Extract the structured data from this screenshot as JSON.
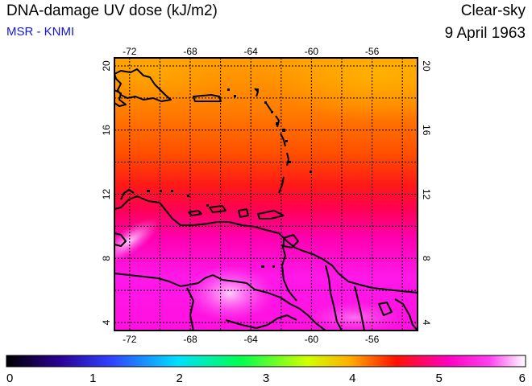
{
  "header": {
    "title": "DNA-damage UV dose (kJ/m2)",
    "source": "MSR - KNMI",
    "condition": "Clear-sky",
    "date": "9 April 1963"
  },
  "map": {
    "lon_range": [
      -73,
      -53
    ],
    "lat_range": [
      3.5,
      20.5
    ],
    "lon_ticks": [
      -72,
      -68,
      -64,
      -60,
      -56
    ],
    "lat_ticks": [
      4,
      8,
      12,
      16,
      20
    ],
    "lon_tick_labels": [
      "-72",
      "-68",
      "-64",
      "-60",
      "-56"
    ],
    "lat_tick_labels": [
      "4",
      "8",
      "12",
      "16",
      "20"
    ],
    "grid_lines": "dotted, every 2 degrees",
    "coastlines": "black"
  },
  "colorbar": {
    "min": 0,
    "max": 6,
    "tick_labels": [
      "0",
      "1",
      "2",
      "3",
      "4",
      "5",
      "6"
    ],
    "colors": [
      "#000000",
      "#3a00c8",
      "#0050ff",
      "#00d8ff",
      "#00ff60",
      "#e8ff00",
      "#ff9000",
      "#ff0000",
      "#ff00d0",
      "#ffffff"
    ]
  },
  "chart_data": {
    "type": "heatmap",
    "title": "DNA-damage UV dose (kJ/m2)",
    "xlabel": "",
    "ylabel": "",
    "xlim": [
      -73,
      -53
    ],
    "ylim": [
      3.5,
      20.5
    ],
    "value_range": [
      0,
      6
    ],
    "description_rows": [
      {
        "lat": 20,
        "approx_value": 4.1
      },
      {
        "lat": 18,
        "approx_value": 4.2
      },
      {
        "lat": 16,
        "approx_value": 4.3
      },
      {
        "lat": 14,
        "approx_value": 4.5
      },
      {
        "lat": 12,
        "approx_value": 4.6
      },
      {
        "lat": 10,
        "approx_value": 4.9
      },
      {
        "lat": 8,
        "approx_value": 5.2
      },
      {
        "lat": 6,
        "approx_value": 5.4
      },
      {
        "lat": 4,
        "approx_value": 5.3
      }
    ]
  }
}
